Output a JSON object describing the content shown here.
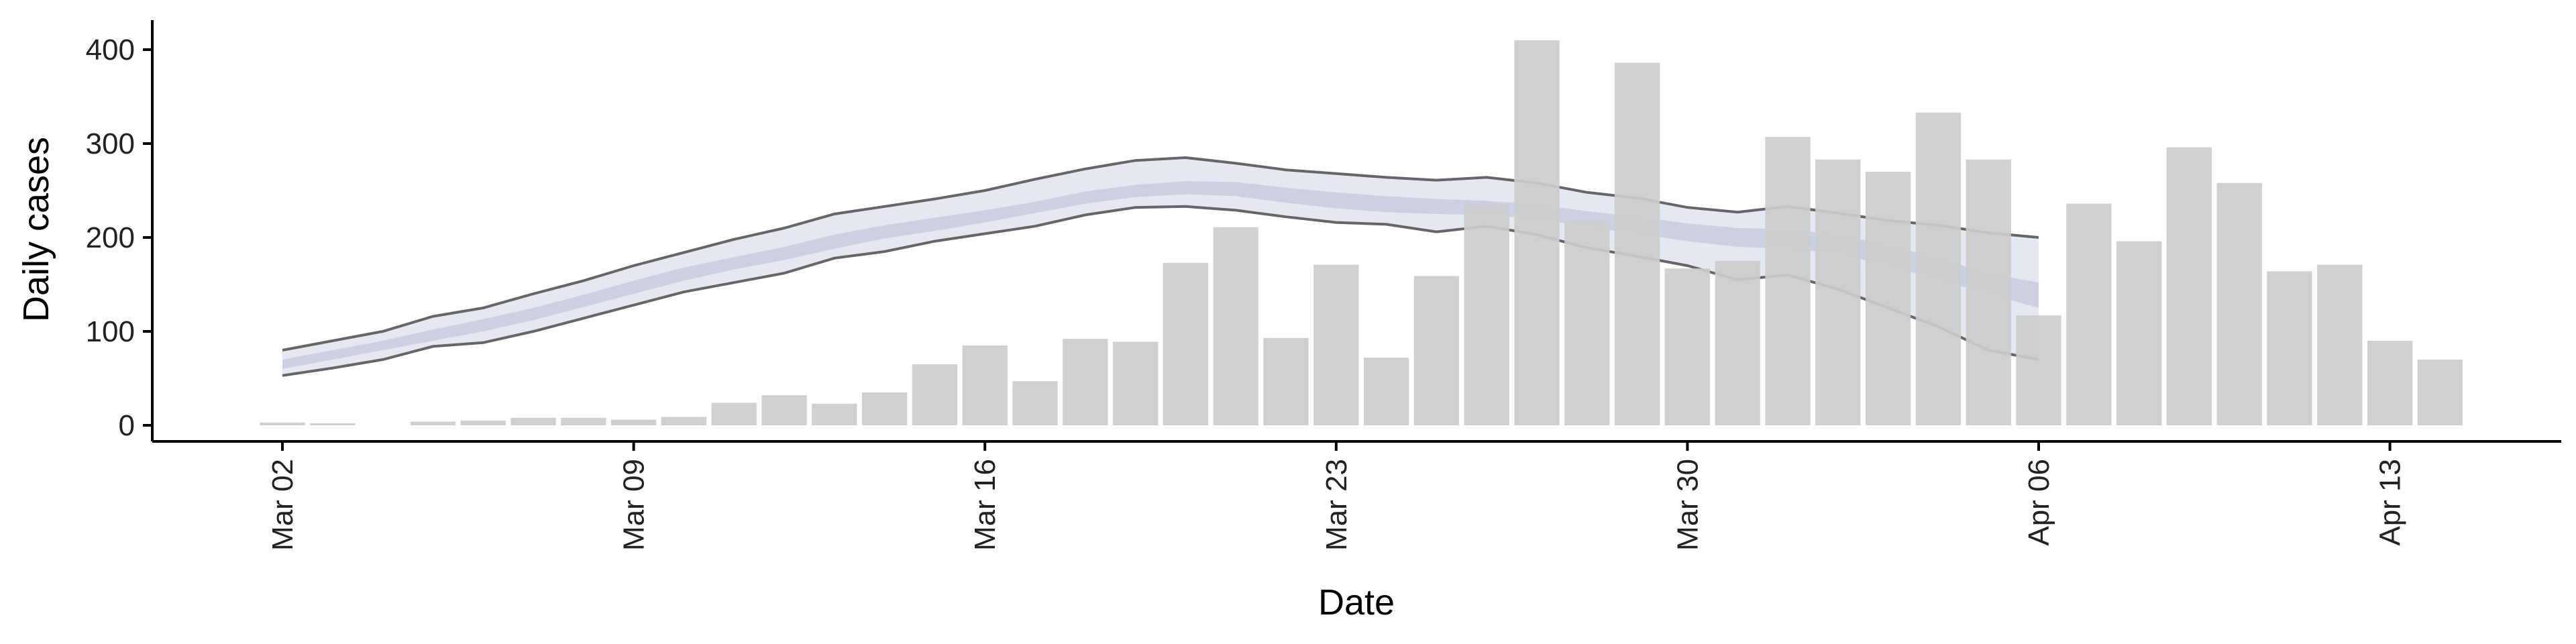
{
  "chart_data": {
    "type": "bar",
    "xlabel": "Date",
    "ylabel": "Daily cases",
    "ylim": [
      -20,
      430
    ],
    "yticks": [
      0,
      100,
      200,
      300,
      400
    ],
    "xticks": [
      {
        "day": 0,
        "label": "Mar 02"
      },
      {
        "day": 7,
        "label": "Mar 09"
      },
      {
        "day": 14,
        "label": "Mar 16"
      },
      {
        "day": 21,
        "label": "Mar 23"
      },
      {
        "day": 28,
        "label": "Mar 30"
      },
      {
        "day": 35,
        "label": "Apr 06"
      },
      {
        "day": 42,
        "label": "Apr 13"
      }
    ],
    "bars": {
      "name": "Daily cases",
      "color": "#cccccc",
      "days": [
        0,
        1,
        2,
        3,
        4,
        5,
        6,
        7,
        8,
        9,
        10,
        11,
        12,
        13,
        14,
        15,
        16,
        17,
        18,
        19,
        20,
        21,
        22,
        23,
        24,
        25,
        26,
        27,
        28,
        29,
        30,
        31,
        32,
        33,
        34,
        35,
        36,
        37,
        38,
        39,
        40,
        41,
        42,
        43
      ],
      "values": [
        3,
        2,
        0,
        4,
        5,
        8,
        8,
        6,
        9,
        24,
        32,
        23,
        35,
        65,
        85,
        47,
        92,
        89,
        173,
        211,
        93,
        171,
        72,
        159,
        235,
        410,
        218,
        386,
        167,
        175,
        307,
        283,
        270,
        333,
        283,
        117,
        236,
        196,
        296,
        258,
        164,
        171,
        90,
        70
      ]
    },
    "bands": [
      {
        "name": "outer",
        "color": "#dcdfec",
        "days": [
          0,
          1,
          2,
          3,
          4,
          5,
          6,
          7,
          8,
          9,
          10,
          11,
          12,
          13,
          14,
          15,
          16,
          17,
          18,
          19,
          20,
          21,
          22,
          23,
          24,
          25,
          26,
          27,
          28,
          29,
          30,
          31,
          32,
          33,
          34,
          35
        ],
        "lower": [
          53,
          61,
          70,
          84,
          88,
          100,
          114,
          128,
          142,
          152,
          162,
          178,
          185,
          196,
          204,
          212,
          224,
          232,
          233,
          229,
          222,
          216,
          214,
          206,
          212,
          203,
          189,
          180,
          170,
          155,
          160,
          145,
          125,
          105,
          80,
          70
        ],
        "upper": [
          80,
          90,
          100,
          116,
          125,
          140,
          154,
          170,
          184,
          198,
          210,
          225,
          233,
          241,
          250,
          262,
          273,
          282,
          285,
          279,
          272,
          268,
          264,
          261,
          264,
          258,
          248,
          242,
          232,
          227,
          233,
          226,
          218,
          213,
          205,
          200
        ]
      },
      {
        "name": "inner",
        "color": "#c3c8dc",
        "days": [
          0,
          1,
          2,
          3,
          4,
          5,
          6,
          7,
          8,
          9,
          10,
          11,
          12,
          13,
          14,
          15,
          16,
          17,
          18,
          19,
          20,
          21,
          22,
          23,
          24,
          25,
          26,
          27,
          28,
          29,
          30,
          31,
          32,
          33,
          34,
          35
        ],
        "lower": [
          60,
          70,
          80,
          90,
          100,
          112,
          126,
          140,
          154,
          166,
          176,
          188,
          199,
          207,
          216,
          226,
          236,
          243,
          246,
          244,
          237,
          231,
          227,
          225,
          224,
          220,
          211,
          204,
          196,
          190,
          188,
          183,
          170,
          155,
          140,
          125
        ],
        "upper": [
          70,
          80,
          90,
          102,
          113,
          125,
          139,
          154,
          168,
          179,
          190,
          203,
          213,
          221,
          229,
          238,
          249,
          256,
          260,
          259,
          253,
          248,
          244,
          241,
          239,
          235,
          228,
          222,
          215,
          210,
          209,
          203,
          192,
          178,
          162,
          152
        ]
      }
    ],
    "lines": [
      {
        "name": "upper",
        "color": "#666666",
        "days": [
          0,
          1,
          2,
          3,
          4,
          5,
          6,
          7,
          8,
          9,
          10,
          11,
          12,
          13,
          14,
          15,
          16,
          17,
          18,
          19,
          20,
          21,
          22,
          23,
          24,
          25,
          26,
          27,
          28,
          29,
          30,
          31,
          32,
          33,
          34,
          35
        ],
        "values": [
          80,
          90,
          100,
          116,
          125,
          140,
          154,
          170,
          184,
          198,
          210,
          225,
          233,
          241,
          250,
          262,
          273,
          282,
          285,
          279,
          272,
          268,
          264,
          261,
          264,
          258,
          248,
          242,
          232,
          227,
          233,
          226,
          218,
          213,
          205,
          200
        ]
      },
      {
        "name": "lower",
        "color": "#666666",
        "days": [
          0,
          1,
          2,
          3,
          4,
          5,
          6,
          7,
          8,
          9,
          10,
          11,
          12,
          13,
          14,
          15,
          16,
          17,
          18,
          19,
          20,
          21,
          22,
          23,
          24,
          25,
          26,
          27,
          28,
          29,
          30,
          31,
          32,
          33,
          34,
          35
        ],
        "values": [
          53,
          61,
          70,
          84,
          88,
          100,
          114,
          128,
          142,
          152,
          162,
          178,
          185,
          196,
          204,
          212,
          224,
          232,
          233,
          229,
          222,
          216,
          214,
          206,
          212,
          203,
          189,
          180,
          170,
          155,
          160,
          145,
          125,
          105,
          80,
          70
        ]
      }
    ],
    "grid": false
  }
}
